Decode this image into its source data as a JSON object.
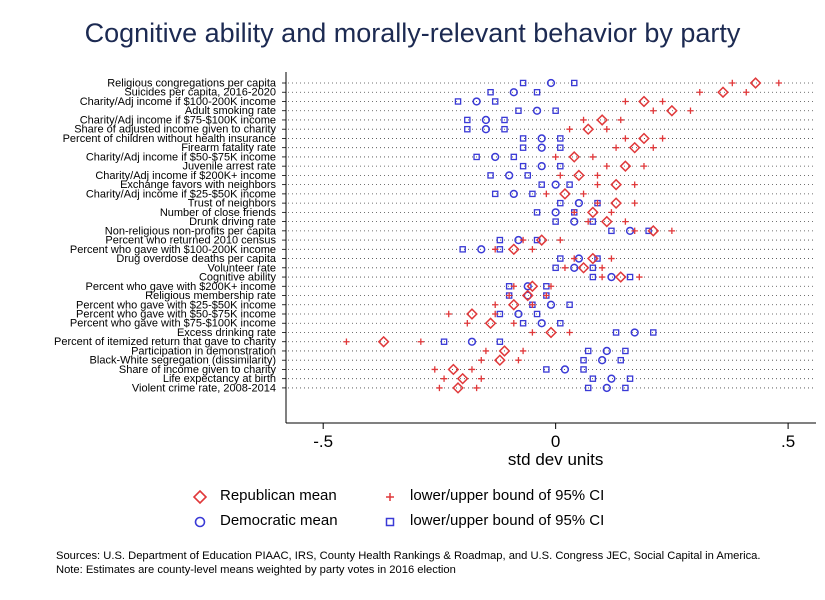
{
  "chart_data": {
    "type": "scatter",
    "title": "Cognitive ability and morally-relevant behavior by party",
    "xlabel": "std dev units",
    "ylabel": "",
    "xlim": [
      -0.58,
      0.56
    ],
    "xticks": [
      -0.5,
      0,
      0.5
    ],
    "xtick_labels": [
      "-.5",
      "0",
      ".5"
    ],
    "grid": "dotted horizontal lines per category",
    "legend_position": "bottom",
    "colors": {
      "republican": "#e0383a",
      "democratic": "#3a3ad6",
      "title": "#1c2a52"
    },
    "series_names": {
      "rep_mean": "Republican mean",
      "rep_ci": "lower/upper bound of 95% CI",
      "dem_mean": "Democratic mean",
      "dem_ci": "lower/upper bound of 95% CI"
    },
    "rows": [
      {
        "label": "Religious congregations per capita",
        "rep": 0.43,
        "rep_ci": [
          0.38,
          0.48
        ],
        "dem": -0.01,
        "dem_ci": [
          -0.07,
          0.04
        ]
      },
      {
        "label": "Suicides per capita, 2016-2020",
        "rep": 0.36,
        "rep_ci": [
          0.31,
          0.41
        ],
        "dem": -0.09,
        "dem_ci": [
          -0.14,
          -0.04
        ]
      },
      {
        "label": "Charity/Adj income if $100-200K income",
        "rep": 0.19,
        "rep_ci": [
          0.15,
          0.23
        ],
        "dem": -0.17,
        "dem_ci": [
          -0.21,
          -0.13
        ]
      },
      {
        "label": "Adult smoking rate",
        "rep": 0.25,
        "rep_ci": [
          0.21,
          0.29
        ],
        "dem": -0.04,
        "dem_ci": [
          -0.08,
          0.0
        ]
      },
      {
        "label": "Charity/Adj income if $75-$100K income",
        "rep": 0.1,
        "rep_ci": [
          0.06,
          0.14
        ],
        "dem": -0.15,
        "dem_ci": [
          -0.19,
          -0.11
        ]
      },
      {
        "label": "Share of adjusted income given to charity",
        "rep": 0.07,
        "rep_ci": [
          0.03,
          0.11
        ],
        "dem": -0.15,
        "dem_ci": [
          -0.19,
          -0.11
        ]
      },
      {
        "label": "Percent of children without health insurance",
        "rep": 0.19,
        "rep_ci": [
          0.15,
          0.23
        ],
        "dem": -0.03,
        "dem_ci": [
          -0.07,
          0.01
        ]
      },
      {
        "label": "Firearm fatality rate",
        "rep": 0.17,
        "rep_ci": [
          0.13,
          0.21
        ],
        "dem": -0.03,
        "dem_ci": [
          -0.07,
          0.01
        ]
      },
      {
        "label": "Charity/Adj income if $50-$75K income",
        "rep": 0.04,
        "rep_ci": [
          0.0,
          0.08
        ],
        "dem": -0.13,
        "dem_ci": [
          -0.17,
          -0.09
        ]
      },
      {
        "label": "Juvenile arrest rate",
        "rep": 0.15,
        "rep_ci": [
          0.11,
          0.19
        ],
        "dem": -0.03,
        "dem_ci": [
          -0.07,
          0.01
        ]
      },
      {
        "label": "Charity/Adj income if $200K+ income",
        "rep": 0.05,
        "rep_ci": [
          0.01,
          0.09
        ],
        "dem": -0.1,
        "dem_ci": [
          -0.14,
          -0.06
        ]
      },
      {
        "label": "Exchange favors with neighbors",
        "rep": 0.13,
        "rep_ci": [
          0.09,
          0.17
        ],
        "dem": 0.0,
        "dem_ci": [
          -0.03,
          0.03
        ]
      },
      {
        "label": "Charity/Adj income if $25-$50K income",
        "rep": 0.02,
        "rep_ci": [
          -0.02,
          0.06
        ],
        "dem": -0.09,
        "dem_ci": [
          -0.13,
          -0.05
        ]
      },
      {
        "label": "Trust of neighbors",
        "rep": 0.13,
        "rep_ci": [
          0.09,
          0.17
        ],
        "dem": 0.05,
        "dem_ci": [
          0.01,
          0.09
        ]
      },
      {
        "label": "Number of close friends",
        "rep": 0.08,
        "rep_ci": [
          0.04,
          0.12
        ],
        "dem": 0.0,
        "dem_ci": [
          -0.04,
          0.04
        ]
      },
      {
        "label": "Drunk driving rate",
        "rep": 0.11,
        "rep_ci": [
          0.07,
          0.15
        ],
        "dem": 0.04,
        "dem_ci": [
          0.0,
          0.08
        ]
      },
      {
        "label": "Non-religious non-profits per capita",
        "rep": 0.21,
        "rep_ci": [
          0.17,
          0.25
        ],
        "dem": 0.16,
        "dem_ci": [
          0.12,
          0.2
        ]
      },
      {
        "label": "Percent who returned 2010 census",
        "rep": -0.03,
        "rep_ci": [
          -0.07,
          0.01
        ],
        "dem": -0.08,
        "dem_ci": [
          -0.12,
          -0.04
        ]
      },
      {
        "label": "Percent who gave with $100-200K income",
        "rep": -0.09,
        "rep_ci": [
          -0.13,
          -0.05
        ],
        "dem": -0.16,
        "dem_ci": [
          -0.2,
          -0.12
        ]
      },
      {
        "label": "Drug overdose deaths per capita",
        "rep": 0.08,
        "rep_ci": [
          0.04,
          0.12
        ],
        "dem": 0.05,
        "dem_ci": [
          0.01,
          0.09
        ]
      },
      {
        "label": "Volunteer rate",
        "rep": 0.06,
        "rep_ci": [
          0.02,
          0.1
        ],
        "dem": 0.04,
        "dem_ci": [
          0.0,
          0.08
        ]
      },
      {
        "label": "Cognitive ability",
        "rep": 0.14,
        "rep_ci": [
          0.1,
          0.18
        ],
        "dem": 0.12,
        "dem_ci": [
          0.08,
          0.16
        ]
      },
      {
        "label": "Percent who gave with $200K+ income",
        "rep": -0.05,
        "rep_ci": [
          -0.09,
          -0.01
        ],
        "dem": -0.06,
        "dem_ci": [
          -0.1,
          -0.02
        ]
      },
      {
        "label": "Religious membership rate",
        "rep": -0.06,
        "rep_ci": [
          -0.1,
          -0.02
        ],
        "dem": -0.06,
        "dem_ci": [
          -0.1,
          -0.02
        ]
      },
      {
        "label": "Percent who gave with $25-$50K income",
        "rep": -0.09,
        "rep_ci": [
          -0.13,
          -0.05
        ],
        "dem": -0.01,
        "dem_ci": [
          -0.05,
          0.03
        ]
      },
      {
        "label": "Percent who gave with $50-$75K income",
        "rep": -0.18,
        "rep_ci": [
          -0.23,
          -0.13
        ],
        "dem": -0.08,
        "dem_ci": [
          -0.12,
          -0.04
        ]
      },
      {
        "label": "Percent who gave with $75-$100K income",
        "rep": -0.14,
        "rep_ci": [
          -0.19,
          -0.09
        ],
        "dem": -0.03,
        "dem_ci": [
          -0.07,
          0.01
        ]
      },
      {
        "label": "Excess drinking rate",
        "rep": -0.01,
        "rep_ci": [
          -0.05,
          0.03
        ],
        "dem": 0.17,
        "dem_ci": [
          0.13,
          0.21
        ]
      },
      {
        "label": "Percent of itemized return that gave to charity",
        "rep": -0.37,
        "rep_ci": [
          -0.45,
          -0.29
        ],
        "dem": -0.18,
        "dem_ci": [
          -0.24,
          -0.12
        ]
      },
      {
        "label": "Participation in demonstration",
        "rep": -0.11,
        "rep_ci": [
          -0.15,
          -0.07
        ],
        "dem": 0.11,
        "dem_ci": [
          0.07,
          0.15
        ]
      },
      {
        "label": "Black-White segregation (dissimilarity)",
        "rep": -0.12,
        "rep_ci": [
          -0.16,
          -0.08
        ],
        "dem": 0.1,
        "dem_ci": [
          0.06,
          0.14
        ]
      },
      {
        "label": "Share of income given to charity",
        "rep": -0.22,
        "rep_ci": [
          -0.26,
          -0.18
        ],
        "dem": 0.02,
        "dem_ci": [
          -0.02,
          0.06
        ]
      },
      {
        "label": "Life expectancy at birth",
        "rep": -0.2,
        "rep_ci": [
          -0.24,
          -0.16
        ],
        "dem": 0.12,
        "dem_ci": [
          0.08,
          0.16
        ]
      },
      {
        "label": "Violent crime rate, 2008-2014",
        "rep": -0.21,
        "rep_ci": [
          -0.25,
          -0.17
        ],
        "dem": 0.11,
        "dem_ci": [
          0.07,
          0.15
        ]
      }
    ]
  },
  "notes": {
    "sources": "Sources: U.S. Department of Education PIAAC, IRS, County Health Rankings & Roadmap, and U.S. Congress JEC, Social Capital in America.",
    "note": "Note: Estimates are county-level means weighted by party votes in 2016 election"
  }
}
